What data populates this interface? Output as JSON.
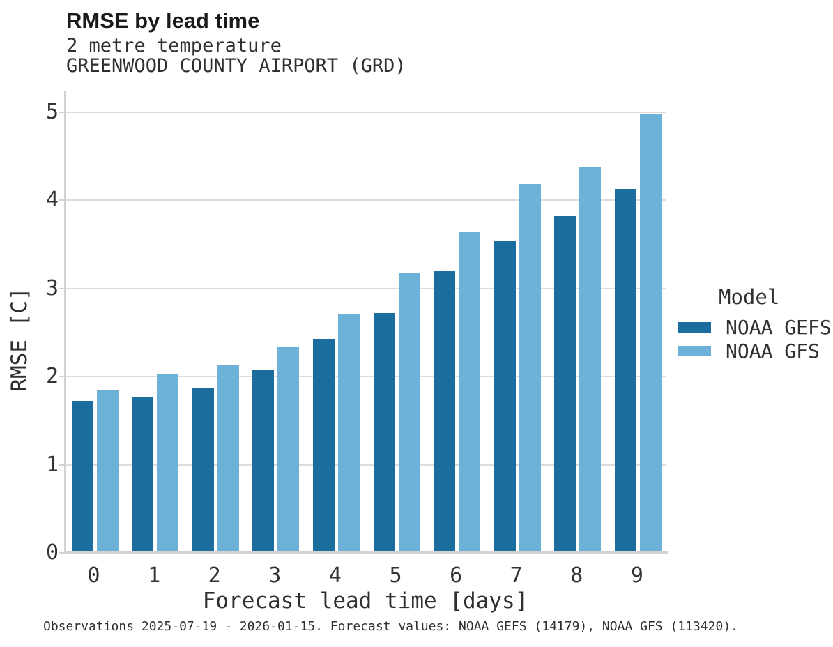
{
  "chart_data": {
    "type": "bar",
    "title": "RMSE by lead time",
    "subtitle": "2 metre temperature",
    "subtitle2": "GREENWOOD COUNTY AIRPORT (GRD)",
    "xlabel": "Forecast lead time [days]",
    "ylabel": "RMSE [C]",
    "legend_title": "Model",
    "legend_position": "right",
    "grid": true,
    "ylim": [
      0,
      5.23
    ],
    "yticks": [
      0,
      1,
      2,
      3,
      4,
      5
    ],
    "categories": [
      "0",
      "1",
      "2",
      "3",
      "4",
      "5",
      "6",
      "7",
      "8",
      "9"
    ],
    "series": [
      {
        "name": "NOAA GEFS",
        "color": "#1a6d9c",
        "values": [
          1.72,
          1.77,
          1.87,
          2.07,
          2.43,
          2.72,
          3.19,
          3.53,
          3.82,
          4.13
        ]
      },
      {
        "name": "NOAA GFS",
        "color": "#6db1d8",
        "values": [
          1.85,
          2.02,
          2.13,
          2.33,
          2.71,
          3.17,
          3.64,
          4.18,
          4.38,
          4.98
        ]
      }
    ],
    "caption": "Observations 2025-07-19 - 2026-01-15. Forecast values: NOAA GEFS (14179), NOAA GFS (113420).",
    "colors": {
      "gridline": "#dcdcdc",
      "axis": "#d2d2d2",
      "text": "#333333"
    }
  }
}
